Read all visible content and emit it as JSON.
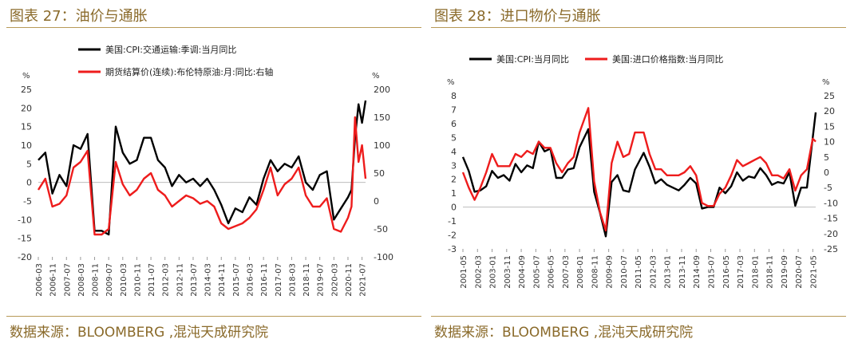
{
  "chart_data": [
    {
      "type": "line",
      "title": "图表 27：油价与通胀",
      "source": "数据来源：BLOOMBERG ,混沌天成研究院",
      "y_unit_left": "%",
      "y_unit_right": "%",
      "ylim_left": [
        -20,
        25
      ],
      "ylim_right": [
        -100,
        200
      ],
      "yticks_left": [
        "25",
        "20",
        "15",
        "10",
        "5",
        "0",
        "-5",
        "-10",
        "-15",
        "-20"
      ],
      "yticks_right": [
        "200",
        "150",
        "100",
        "50",
        "0",
        "-50",
        "-100"
      ],
      "x_tick_labels": [
        "2006-03",
        "2006-11",
        "2007-07",
        "2008-03",
        "2008-11",
        "2009-07",
        "2010-03",
        "2010-11",
        "2011-07",
        "2012-03",
        "2012-11",
        "2013-07",
        "2014-03",
        "2014-11",
        "2015-07",
        "2016-03",
        "2016-11",
        "2017-07",
        "2018-03",
        "2018-11",
        "2019-07",
        "2020-03",
        "2020-11",
        "2021-07"
      ],
      "legend_position": "top",
      "series": [
        {
          "name": "美国:CPI:交通运输:季调:当月同比",
          "color": "#000000",
          "axis": "left",
          "x": [
            "2006-03",
            "2006-07",
            "2006-11",
            "2007-03",
            "2007-07",
            "2007-11",
            "2008-03",
            "2008-07",
            "2008-11",
            "2009-03",
            "2009-07",
            "2009-11",
            "2010-03",
            "2010-07",
            "2010-11",
            "2011-03",
            "2011-07",
            "2011-11",
            "2012-03",
            "2012-07",
            "2012-11",
            "2013-03",
            "2013-07",
            "2013-11",
            "2014-03",
            "2014-07",
            "2014-11",
            "2015-03",
            "2015-07",
            "2015-11",
            "2016-03",
            "2016-07",
            "2016-11",
            "2017-03",
            "2017-07",
            "2017-11",
            "2018-03",
            "2018-07",
            "2018-11",
            "2019-03",
            "2019-07",
            "2019-11",
            "2020-03",
            "2020-07",
            "2020-11",
            "2021-01",
            "2021-03",
            "2021-05",
            "2021-07",
            "2021-09"
          ],
          "values": [
            6,
            8,
            -3,
            2,
            -1,
            10,
            9,
            13,
            -13,
            -13,
            -14,
            15,
            8,
            5,
            6,
            12,
            12,
            6,
            4,
            -1,
            2,
            0,
            1,
            -1,
            1,
            -2,
            -6,
            -11,
            -7,
            -8,
            -4,
            -6,
            1,
            6,
            3,
            5,
            4,
            7,
            0,
            -2,
            2,
            3,
            -10,
            -7,
            -4,
            -2,
            12,
            21,
            16,
            22
          ]
        },
        {
          "name": "期货结算价(连续):布伦特原油:月:同比:右轴",
          "color": "#ee1c1c",
          "axis": "right",
          "x": [
            "2006-03",
            "2006-07",
            "2006-11",
            "2007-03",
            "2007-07",
            "2007-11",
            "2008-03",
            "2008-07",
            "2008-11",
            "2009-03",
            "2009-07",
            "2009-11",
            "2010-03",
            "2010-07",
            "2010-11",
            "2011-03",
            "2011-07",
            "2011-11",
            "2012-03",
            "2012-07",
            "2012-11",
            "2013-03",
            "2013-07",
            "2013-11",
            "2014-03",
            "2014-07",
            "2014-11",
            "2015-03",
            "2015-07",
            "2015-11",
            "2016-03",
            "2016-07",
            "2016-11",
            "2017-03",
            "2017-07",
            "2017-11",
            "2018-03",
            "2018-07",
            "2018-11",
            "2019-03",
            "2019-07",
            "2019-11",
            "2020-03",
            "2020-07",
            "2020-11",
            "2021-01",
            "2021-03",
            "2021-05",
            "2021-07",
            "2021-09"
          ],
          "values": [
            20,
            40,
            -10,
            -5,
            10,
            60,
            70,
            90,
            -60,
            -60,
            -50,
            70,
            30,
            10,
            20,
            40,
            50,
            20,
            10,
            -10,
            0,
            10,
            5,
            -5,
            0,
            -10,
            -40,
            -50,
            -45,
            -40,
            -30,
            -15,
            20,
            60,
            10,
            30,
            40,
            60,
            10,
            -10,
            -10,
            5,
            -50,
            -55,
            -30,
            -10,
            150,
            70,
            100,
            40
          ]
        }
      ]
    },
    {
      "type": "line",
      "title": "图表 28：进口物价与通胀",
      "source": "数据来源：BLOOMBERG ,混沌天成研究院",
      "y_unit_left": "%",
      "y_unit_right": "%",
      "ylim_left": [
        -3,
        8
      ],
      "ylim_right": [
        -25,
        25
      ],
      "yticks_left": [
        "8",
        "7",
        "6",
        "5",
        "4",
        "3",
        "2",
        "1",
        "0",
        "-1",
        "-2",
        "-3"
      ],
      "yticks_right": [
        "25",
        "20",
        "15",
        "10",
        "5",
        "0",
        "-5",
        "-10",
        "-15",
        "-20",
        "-25"
      ],
      "x_tick_labels": [
        "2001-05",
        "2002-03",
        "2003-01",
        "2003-11",
        "2004-09",
        "2005-07",
        "2006-05",
        "2007-03",
        "2008-01",
        "2008-11",
        "2009-09",
        "2010-07",
        "2011-05",
        "2012-03",
        "2013-01",
        "2013-11",
        "2014-09",
        "2015-07",
        "2016-05",
        "2017-03",
        "2018-01",
        "2018-11",
        "2019-09",
        "2020-07",
        "2021-05"
      ],
      "legend_position": "top",
      "series": [
        {
          "name": "美国:CPI:当月同比",
          "color": "#000000",
          "axis": "left",
          "x": [
            "2001-05",
            "2001-09",
            "2002-01",
            "2002-05",
            "2002-09",
            "2003-01",
            "2003-05",
            "2003-09",
            "2004-01",
            "2004-05",
            "2004-09",
            "2005-01",
            "2005-05",
            "2005-09",
            "2006-01",
            "2006-05",
            "2006-09",
            "2007-01",
            "2007-05",
            "2007-09",
            "2008-01",
            "2008-07",
            "2008-11",
            "2009-03",
            "2009-07",
            "2009-11",
            "2010-03",
            "2010-07",
            "2010-11",
            "2011-03",
            "2011-09",
            "2012-01",
            "2012-05",
            "2012-09",
            "2013-01",
            "2013-05",
            "2013-09",
            "2014-01",
            "2014-05",
            "2014-09",
            "2015-01",
            "2015-05",
            "2015-09",
            "2016-01",
            "2016-05",
            "2016-09",
            "2017-01",
            "2017-05",
            "2017-09",
            "2018-01",
            "2018-05",
            "2018-09",
            "2019-01",
            "2019-05",
            "2019-09",
            "2020-01",
            "2020-05",
            "2020-09",
            "2021-01",
            "2021-05",
            "2021-07"
          ],
          "values": [
            3.6,
            2.6,
            1.1,
            1.2,
            1.5,
            2.6,
            2.1,
            2.3,
            1.9,
            3.1,
            2.5,
            3.0,
            2.8,
            4.7,
            4.0,
            4.2,
            2.1,
            2.1,
            2.7,
            2.8,
            4.3,
            5.6,
            1.1,
            -0.4,
            -2.1,
            1.8,
            2.3,
            1.2,
            1.1,
            2.7,
            3.9,
            2.9,
            1.7,
            2.0,
            1.6,
            1.4,
            1.2,
            1.6,
            2.1,
            1.7,
            -0.1,
            0.0,
            0.0,
            1.4,
            1.0,
            1.5,
            2.5,
            1.9,
            2.2,
            2.1,
            2.8,
            2.3,
            1.6,
            1.8,
            1.7,
            2.5,
            0.1,
            1.4,
            1.4,
            5.0,
            6.8
          ]
        },
        {
          "name": "美国:进口价格指数:当月同比",
          "color": "#ee1c1c",
          "axis": "right",
          "x": [
            "2001-05",
            "2001-09",
            "2002-01",
            "2002-05",
            "2002-09",
            "2003-01",
            "2003-05",
            "2003-09",
            "2004-01",
            "2004-05",
            "2004-09",
            "2005-01",
            "2005-05",
            "2005-09",
            "2006-01",
            "2006-05",
            "2006-09",
            "2007-01",
            "2007-05",
            "2007-09",
            "2008-01",
            "2008-07",
            "2008-11",
            "2009-03",
            "2009-07",
            "2009-11",
            "2010-03",
            "2010-07",
            "2010-11",
            "2011-03",
            "2011-09",
            "2012-01",
            "2012-05",
            "2012-09",
            "2013-01",
            "2013-05",
            "2013-09",
            "2014-01",
            "2014-05",
            "2014-09",
            "2015-01",
            "2015-05",
            "2015-09",
            "2016-01",
            "2016-05",
            "2016-09",
            "2017-01",
            "2017-05",
            "2017-09",
            "2018-01",
            "2018-05",
            "2018-09",
            "2019-01",
            "2019-05",
            "2019-09",
            "2020-01",
            "2020-05",
            "2020-09",
            "2021-01",
            "2021-05",
            "2021-07"
          ],
          "values": [
            0,
            -5,
            -9,
            -5,
            0,
            6,
            2,
            2,
            2,
            6,
            5,
            7,
            6,
            10,
            8,
            8,
            3,
            0,
            3,
            5,
            13,
            21,
            -3,
            -13,
            -19,
            3,
            10,
            5,
            6,
            13,
            13,
            6,
            1,
            1,
            -1,
            -1,
            -1,
            0,
            2,
            -1,
            -10,
            -11,
            -11,
            -7,
            -5,
            -1,
            4,
            2,
            3,
            4,
            5,
            3,
            -1,
            -1,
            -2,
            1,
            -6,
            -1,
            1,
            11,
            10
          ]
        }
      ]
    }
  ]
}
